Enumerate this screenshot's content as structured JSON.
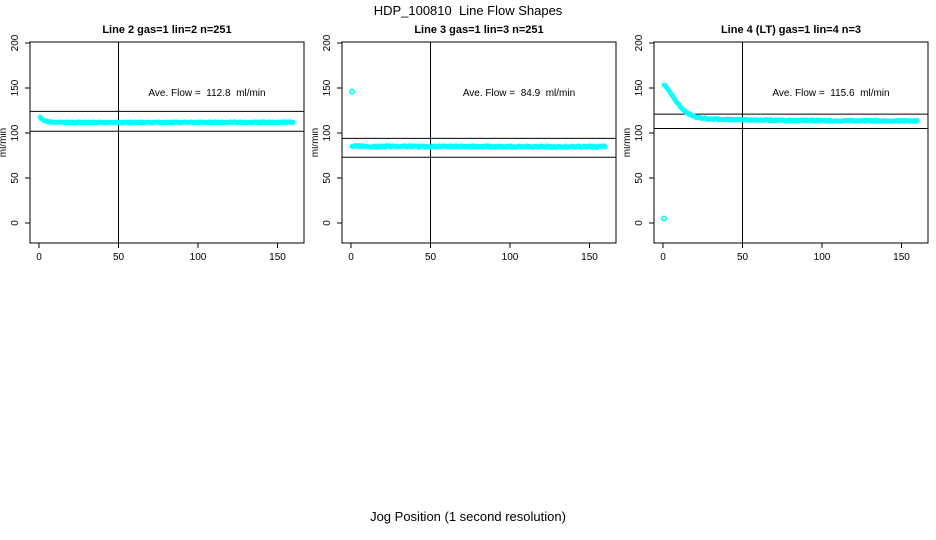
{
  "page": {
    "title": "HDP_100810  Line Flow Shapes",
    "xlabel_outer": "Jog Position (1 second resolution)",
    "background": "#ffffff"
  },
  "axes": {
    "x_ticks": [
      0,
      50,
      100,
      150
    ],
    "y_ticks": [
      0,
      50,
      100,
      150,
      200
    ],
    "ylabel": "ml/min",
    "vline_x": 50,
    "xlim": [
      0,
      160
    ],
    "ylim": [
      -22,
      201
    ],
    "grid": false,
    "point_color": "#00ffff",
    "axis_color": "#000000"
  },
  "chart_data": [
    {
      "type": "scatter",
      "title": "Line 2 gas=1 lin=2 n=251",
      "annotation": "Ave. Flow =  112.8  ml/min",
      "ave_flow_ml_min": 112.8,
      "units": "ml/min",
      "ref_lines": [
        124,
        102
      ],
      "x_start": 0.6,
      "x_end": 160,
      "x_step": 0.64,
      "anchors": [
        [
          0.6,
          117.5
        ],
        [
          1.8,
          115.5
        ],
        [
          3,
          114
        ],
        [
          4.5,
          113
        ],
        [
          6,
          112.5
        ],
        [
          10,
          112
        ],
        [
          20,
          111.8
        ],
        [
          40,
          111.6
        ],
        [
          80,
          111.7
        ],
        [
          120,
          111.9
        ],
        [
          160,
          112
        ]
      ],
      "outliers": [],
      "noise": 0.6
    },
    {
      "type": "scatter",
      "title": "Line 3 gas=1 lin=3 n=251",
      "annotation": "Ave. Flow =  84.9  ml/min",
      "ave_flow_ml_min": 84.9,
      "units": "ml/min",
      "ref_lines": [
        94,
        73
      ],
      "x_start": 0.6,
      "x_end": 160,
      "x_step": 0.64,
      "anchors": [
        [
          0.6,
          86
        ],
        [
          3,
          85.3
        ],
        [
          10,
          85
        ],
        [
          60,
          84.8
        ],
        [
          160,
          84.8
        ]
      ],
      "outliers": [
        [
          0.6,
          146
        ]
      ],
      "noise": 1.0
    },
    {
      "type": "scatter",
      "title": "Line 4 (LT) gas=1 lin=4 n=3",
      "annotation": "Ave. Flow =  115.6  ml/min",
      "ave_flow_ml_min": 115.6,
      "units": "ml/min",
      "ref_lines": [
        121,
        105
      ],
      "x_start": 0.6,
      "x_end": 160,
      "x_step": 0.64,
      "anchors": [
        [
          1.2,
          153
        ],
        [
          2.4,
          150
        ],
        [
          3.6,
          147
        ],
        [
          4.8,
          144
        ],
        [
          6,
          141
        ],
        [
          7.2,
          138
        ],
        [
          8.4,
          135
        ],
        [
          9.6,
          132
        ],
        [
          11,
          129
        ],
        [
          13,
          125.5
        ],
        [
          15,
          122.5
        ],
        [
          17,
          120.5
        ],
        [
          19,
          118.8
        ],
        [
          21,
          117.6
        ],
        [
          24,
          116.6
        ],
        [
          28,
          115.8
        ],
        [
          35,
          115.2
        ],
        [
          50,
          114.6
        ],
        [
          80,
          114
        ],
        [
          120,
          113.6
        ],
        [
          160,
          113.3
        ]
      ],
      "outliers": [
        [
          0.6,
          5
        ]
      ],
      "noise": 0.7
    }
  ]
}
